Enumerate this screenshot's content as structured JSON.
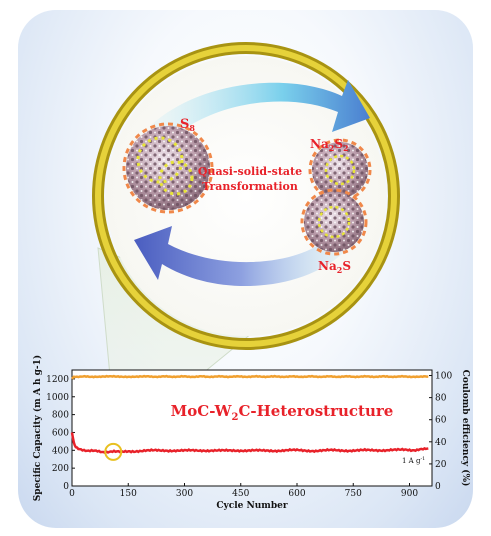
{
  "illustration": {
    "top_label": "S",
    "top_label_sub": "8",
    "center_text_line1": "Quasi-solid-state",
    "center_text_line2": "Transformation",
    "right_label_top": "Na",
    "right_label_top_sub1": "2",
    "right_label_top_mid": "S",
    "right_label_top_sub2": "2",
    "right_label_bottom": "Na",
    "right_label_bottom_sub": "2",
    "right_label_bottom_tail": "S",
    "colors": {
      "ring": "#c9b21a",
      "label_red": "#e8222a",
      "arrow_blue": "#5a6fc9",
      "arrow_cyan": "#7ad0ec",
      "sphere_border": "#f0884a",
      "sulfur_yellow": "#e7e43a"
    }
  },
  "chart_data": {
    "type": "line",
    "title_main": "MoC-W",
    "title_sub": "2",
    "title_tail": "C-Heterostructure",
    "xlabel": "Cycle Number",
    "ylabel_left": "Specific Capacity (m A h g-1)",
    "ylabel_right": "Coulomb efficiency (%)",
    "rate_label": "1 A g",
    "rate_sup": "-1",
    "xlim": [
      0,
      960
    ],
    "ylim_left": [
      0,
      1300
    ],
    "ylim_right": [
      0,
      105
    ],
    "xticks": [
      0,
      150,
      300,
      450,
      600,
      750,
      900
    ],
    "yticks_left": [
      0,
      200,
      400,
      600,
      800,
      1000,
      1200
    ],
    "yticks_right": [
      0,
      20,
      40,
      60,
      80,
      100
    ],
    "series": [
      {
        "axis": "left",
        "color": "#e8222a",
        "x": [
          0,
          5,
          10,
          20,
          40,
          60,
          80,
          100,
          120,
          150,
          200,
          250,
          300,
          350,
          400,
          450,
          500,
          550,
          600,
          650,
          700,
          750,
          800,
          850,
          900,
          940,
          950
        ],
        "y": [
          600,
          480,
          440,
          410,
          400,
          390,
          385,
          380,
          385,
          390,
          395,
          400,
          395,
          400,
          395,
          400,
          395,
          398,
          400,
          395,
          400,
          398,
          400,
          405,
          402,
          410,
          420
        ]
      },
      {
        "axis": "right",
        "color": "#f0a030",
        "x": [
          0,
          5,
          50,
          100,
          150,
          200,
          300,
          400,
          500,
          600,
          700,
          800,
          900,
          950
        ],
        "y": [
          97,
          99,
          99,
          99,
          99,
          99,
          99,
          99,
          99,
          99,
          99,
          99,
          99,
          99
        ]
      }
    ],
    "highlight_cycle": 110
  }
}
